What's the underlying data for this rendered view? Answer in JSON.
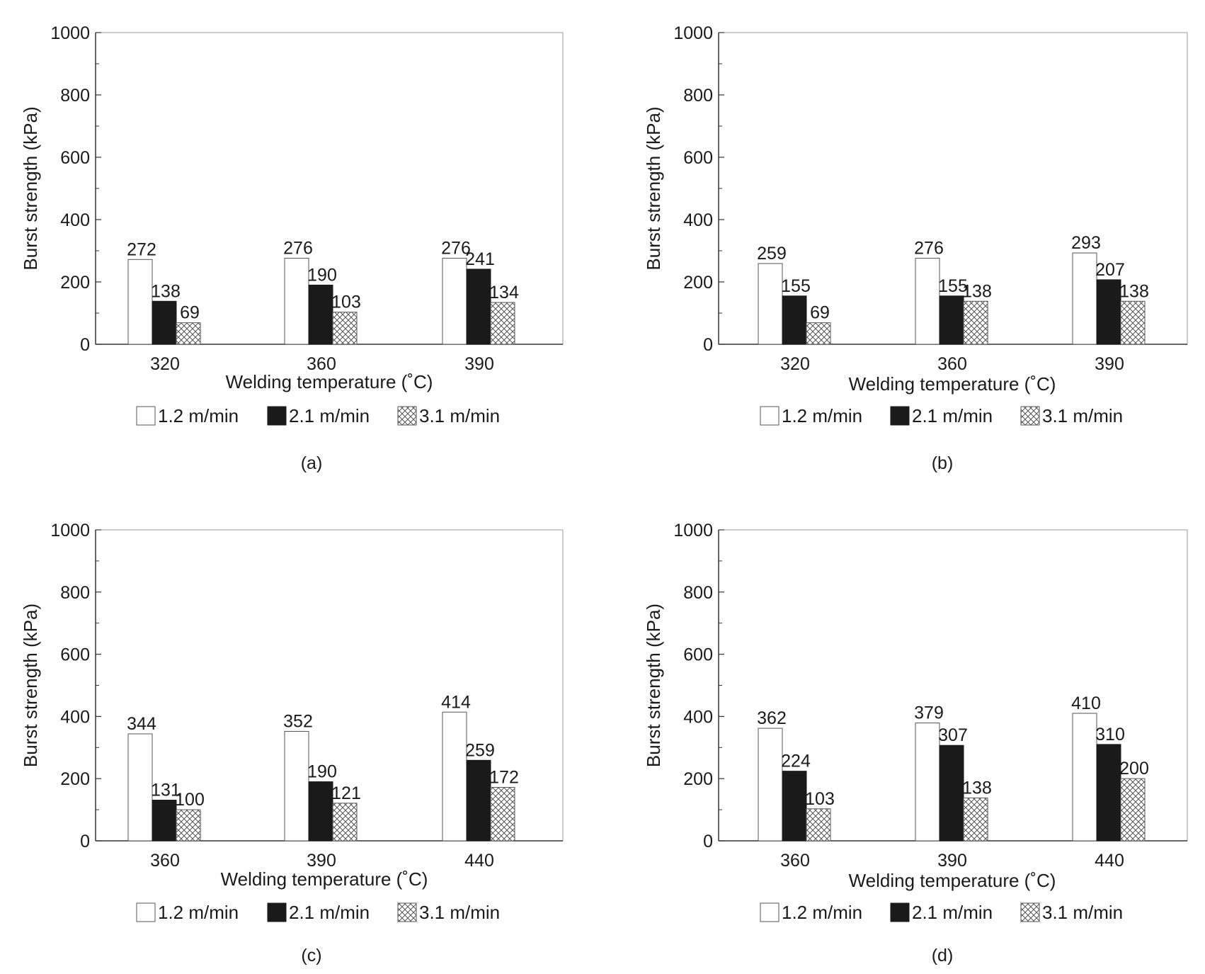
{
  "chart_data": [
    {
      "type": "bar",
      "panel_label": "(a)",
      "categories": [
        "320",
        "360",
        "390"
      ],
      "xlabel": "Welding temperature (˚C)",
      "ylabel": "Burst strength (kPa)",
      "ylim": [
        0,
        1000
      ],
      "yticks": [
        "0",
        "200",
        "400",
        "600",
        "800",
        "1000"
      ],
      "grid": false,
      "legend_placement": "bottom",
      "series": [
        {
          "name": "1.2 m/min",
          "values": [
            272,
            276,
            276
          ],
          "labels": [
            "272",
            "276",
            "276"
          ]
        },
        {
          "name": "2.1 m/min",
          "values": [
            138,
            190,
            241
          ],
          "labels": [
            "138",
            "190",
            "241"
          ]
        },
        {
          "name": "3.1 m/min",
          "values": [
            69,
            103,
            134
          ],
          "labels": [
            "69",
            "103",
            "134"
          ]
        }
      ]
    },
    {
      "type": "bar",
      "panel_label": "(b)",
      "categories": [
        "320",
        "360",
        "390"
      ],
      "xlabel": "Welding temperature (˚C)",
      "ylabel": "Burst strength (kPa)",
      "ylim": [
        0,
        1000
      ],
      "yticks": [
        "0",
        "200",
        "400",
        "600",
        "800",
        "1000"
      ],
      "grid": false,
      "legend_placement": "bottom",
      "series": [
        {
          "name": "1.2 m/min",
          "values": [
            259,
            276,
            293
          ],
          "labels": [
            "259",
            "276",
            "293"
          ]
        },
        {
          "name": "2.1 m/min",
          "values": [
            155,
            155,
            207
          ],
          "labels": [
            "155",
            "155",
            "207"
          ]
        },
        {
          "name": "3.1 m/min",
          "values": [
            69,
            138,
            138
          ],
          "labels": [
            "69",
            "138",
            "138"
          ]
        }
      ]
    },
    {
      "type": "bar",
      "panel_label": "(c)",
      "categories": [
        "360",
        "390",
        "440"
      ],
      "xlabel": "Welding temperature (˚C)",
      "ylabel": "Burst strength (kPa)",
      "ylim": [
        0,
        1000
      ],
      "yticks": [
        "0",
        "200",
        "400",
        "600",
        "800",
        "1000"
      ],
      "grid": false,
      "legend_placement": "bottom",
      "series": [
        {
          "name": "1.2 m/min",
          "values": [
            344,
            352,
            414
          ],
          "labels": [
            "344",
            "352",
            "414"
          ]
        },
        {
          "name": "2.1 m/min",
          "values": [
            131,
            190,
            259
          ],
          "labels": [
            "131",
            "190",
            "259"
          ]
        },
        {
          "name": "3.1 m/min",
          "values": [
            100,
            121,
            172
          ],
          "labels": [
            "100",
            "121",
            "172"
          ]
        }
      ]
    },
    {
      "type": "bar",
      "panel_label": "(d)",
      "categories": [
        "360",
        "390",
        "440"
      ],
      "xlabel": "Welding temperature (˚C)",
      "ylabel": "Burst strength (kPa)",
      "ylim": [
        0,
        1000
      ],
      "yticks": [
        "0",
        "200",
        "400",
        "600",
        "800",
        "1000"
      ],
      "grid": false,
      "legend_placement": "bottom",
      "series": [
        {
          "name": "1.2 m/min",
          "values": [
            362,
            379,
            410
          ],
          "labels": [
            "362",
            "379",
            "410"
          ]
        },
        {
          "name": "2.1 m/min",
          "values": [
            224,
            307,
            310
          ],
          "labels": [
            "224",
            "307",
            "310"
          ]
        },
        {
          "name": "3.1 m/min",
          "values": [
            103,
            138,
            200
          ],
          "labels": [
            "103",
            "138",
            "200"
          ]
        }
      ]
    }
  ],
  "colors": {
    "series_1_fill": "#ffffff",
    "series_2_fill": "#1a1a1a",
    "series_3_pattern": "crosshatch",
    "axis": "#333333"
  }
}
